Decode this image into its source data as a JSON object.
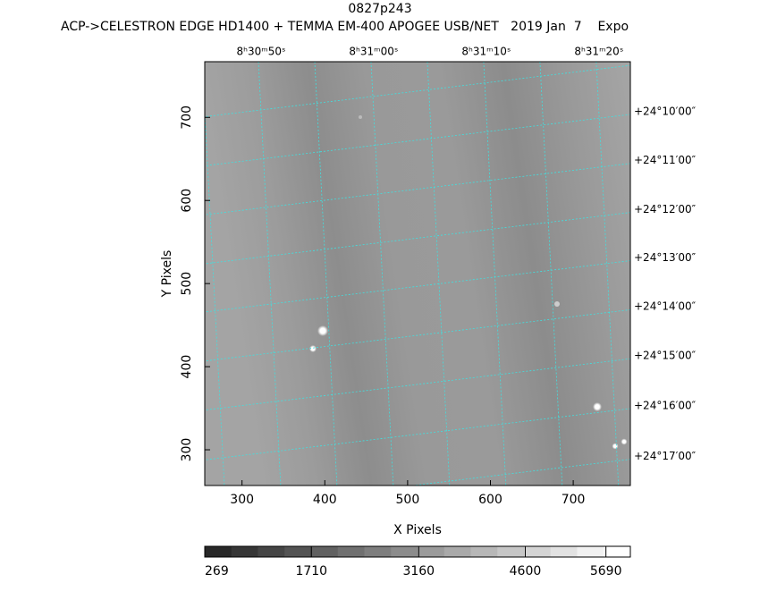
{
  "chart_data": {
    "type": "image",
    "title": "0827p243",
    "subtitle": "ACP->CELESTRON EDGE HD1400 + TEMMA EM-400 APOGEE USB/NET   2019 Jan  7    Expo",
    "x_label": "X Pixels",
    "y_label": "Y Pixels",
    "xlim": [
      255,
      769
    ],
    "ylim": [
      257,
      767
    ],
    "xticks": [
      300,
      400,
      500,
      600,
      700
    ],
    "yticks": [
      300,
      400,
      500,
      600,
      700
    ],
    "ra_ticks": [
      {
        "value": 323,
        "label": "8ʰ30ᵐ50ˢ"
      },
      {
        "value": 459,
        "label": "8ʰ31ᵐ00ˢ"
      },
      {
        "value": 595,
        "label": "8ʰ31ᵐ10ˢ"
      },
      {
        "value": 731,
        "label": "8ʰ31ᵐ20ˢ"
      }
    ],
    "dec_ticks": [
      {
        "value": 707,
        "label": "+24°10′00″"
      },
      {
        "value": 648,
        "label": "+24°11′00″"
      },
      {
        "value": 589,
        "label": "+24°12′00″"
      },
      {
        "value": 531,
        "label": "+24°13′00″"
      },
      {
        "value": 472,
        "label": "+24°14′00″"
      },
      {
        "value": 413,
        "label": "+24°15′00″"
      },
      {
        "value": 353,
        "label": "+24°16′00″"
      },
      {
        "value": 292,
        "label": "+24°17′00″"
      }
    ],
    "grid_color": "#40e0e0",
    "colorbar": {
      "clim": [
        269,
        6020
      ],
      "ticks": [
        269,
        1710,
        3160,
        4600,
        5690
      ]
    }
  }
}
